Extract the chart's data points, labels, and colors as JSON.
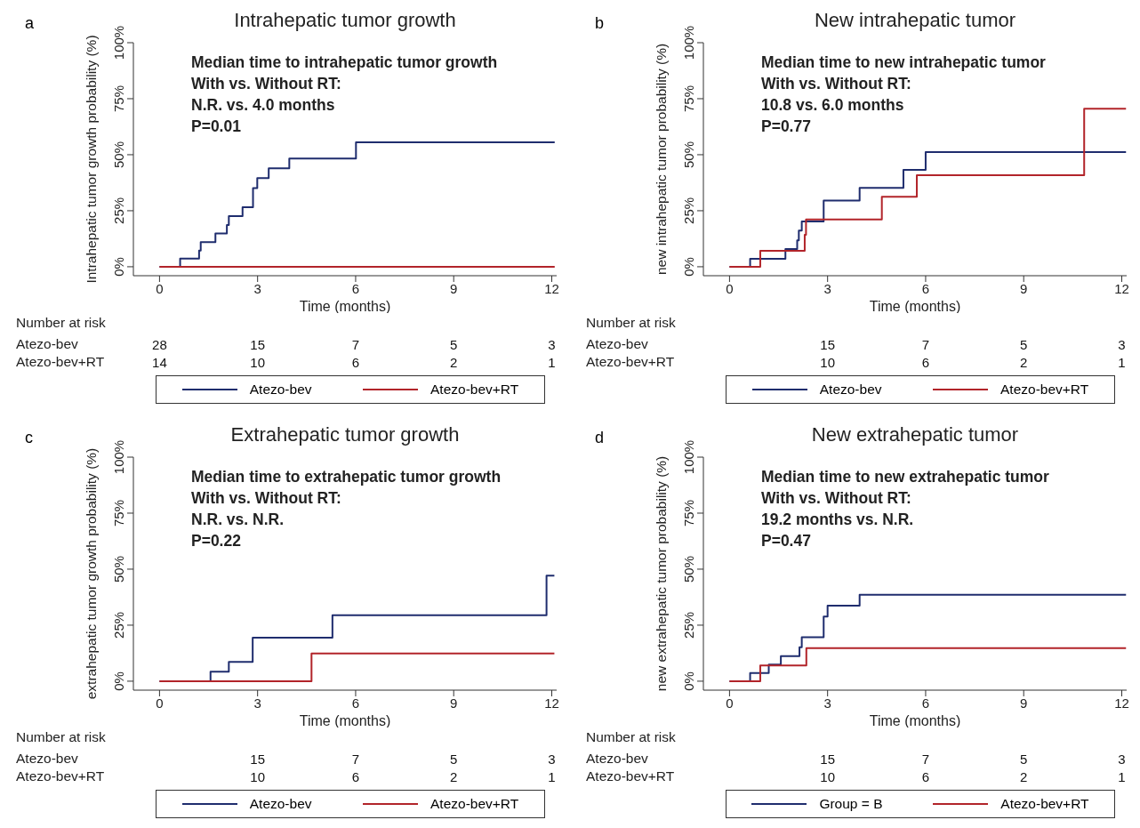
{
  "chart_data": [
    {
      "type": "step",
      "title": "Intrahepatic tumor growth",
      "xlabel": "Time (months)",
      "ylabel": "Intrahepatic tumor growth probability (%)",
      "xlim": [
        -0.8,
        12.15
      ],
      "xticks": [
        0,
        3,
        6,
        9,
        12
      ],
      "ylim": [
        -4,
        100
      ],
      "yticks": [
        {
          "value": 0,
          "label": "0%"
        },
        {
          "value": 25,
          "label": "25%"
        },
        {
          "value": 50,
          "label": "50%"
        },
        {
          "value": 75,
          "label": "75%"
        },
        {
          "value": 100,
          "label": "100%"
        }
      ],
      "legend": "bottom",
      "series": [
        {
          "name": "Atezo-bev",
          "color": "#1f2d6e",
          "x": [
            0,
            0.63,
            1.21,
            1.26,
            1.71,
            2.06,
            2.12,
            2.54,
            2.86,
            2.99,
            3.34,
            3.97,
            6.01,
            12.09
          ],
          "values": [
            0,
            3.6,
            7.2,
            11,
            14.9,
            18.6,
            22.6,
            26.6,
            35.1,
            39.6,
            43.9,
            48.3,
            55.5,
            55.5
          ]
        },
        {
          "name": "Atezo-bev+RT",
          "color": "#b2242a",
          "x": [
            0,
            12.09
          ],
          "values": [
            0,
            0
          ]
        }
      ],
      "annotations": [
        "a",
        "Median time to intrahepatic tumor growth",
        "With vs. Without RT:",
        "N.R. vs. 4.0 months",
        "P=0.01",
        "Number at risk",
        "Atezo-bev",
        "Atezo-bev+RT",
        "28",
        "15",
        "7",
        "5",
        "3",
        "14",
        "10",
        "6",
        "2",
        "1"
      ]
    },
    {
      "type": "step",
      "title": "New intrahepatic tumor",
      "xlabel": "Time (months)",
      "ylabel": "new intrahepatic tumor probability (%)",
      "xlim": [
        -0.8,
        12.15
      ],
      "xticks": [
        0,
        3,
        6,
        9,
        12
      ],
      "ylim": [
        -4,
        100
      ],
      "yticks": [
        {
          "value": 0,
          "label": "0%"
        },
        {
          "value": 25,
          "label": "25%"
        },
        {
          "value": 50,
          "label": "50%"
        },
        {
          "value": 75,
          "label": "75%"
        },
        {
          "value": 100,
          "label": "100%"
        }
      ],
      "legend": "bottom",
      "series": [
        {
          "name": "Atezo-bev",
          "color": "#1f2d6e",
          "x": [
            0,
            0.63,
            1.71,
            2.07,
            2.12,
            2.21,
            2.88,
            3.98,
            5.32,
            6.0,
            12.13
          ],
          "values": [
            0,
            3.5,
            7.9,
            11.8,
            16.1,
            20.2,
            29.5,
            35.2,
            43.2,
            51.2,
            51.2
          ]
        },
        {
          "name": "Atezo-bev+RT",
          "color": "#b2242a",
          "x": [
            0,
            0.94,
            2.3,
            2.34,
            4.66,
            5.73,
            10.85,
            12.13
          ],
          "values": [
            0,
            7.1,
            14.3,
            21.1,
            31.2,
            40.9,
            70.5,
            70.5
          ]
        }
      ],
      "annotations": [
        "b",
        "Median time to new intrahepatic tumor",
        "With vs. Without RT:",
        "10.8 vs. 6.0 months",
        "P=0.77",
        "Number at risk",
        "Atezo-bev",
        "Atezo-bev+RT",
        "15",
        "7",
        "5",
        "3",
        "10",
        "6",
        "2",
        "1"
      ]
    },
    {
      "type": "step",
      "title": "Extrahepatic tumor growth",
      "xlabel": "Time (months)",
      "ylabel": "extrahepatic tumor growth probability (%)",
      "xlim": [
        -0.8,
        12.15
      ],
      "xticks": [
        0,
        3,
        6,
        9,
        12
      ],
      "ylim": [
        -4,
        100
      ],
      "yticks": [
        {
          "value": 0,
          "label": "0%"
        },
        {
          "value": 25,
          "label": "25%"
        },
        {
          "value": 50,
          "label": "50%"
        },
        {
          "value": 75,
          "label": "75%"
        },
        {
          "value": 100,
          "label": "100%"
        }
      ],
      "legend": "bottom",
      "series": [
        {
          "name": "Atezo-bev",
          "color": "#1f2d6e",
          "x": [
            0,
            1.56,
            2.12,
            2.85,
            5.29,
            11.84,
            12.08
          ],
          "values": [
            0,
            4.2,
            8.6,
            19.4,
            29.4,
            47.1,
            47.1
          ]
        },
        {
          "name": "Atezo-bev+RT",
          "color": "#b2242a",
          "x": [
            0,
            4.65,
            12.08
          ],
          "values": [
            0,
            12.4,
            12.4
          ]
        }
      ],
      "annotations": [
        "c",
        "Median time to extrahepatic tumor growth",
        "With vs. Without RT:",
        "N.R. vs.  N.R.",
        "P=0.22",
        "Number at risk",
        "Atezo-bev",
        "Atezo-bev+RT",
        "15",
        "7",
        "5",
        "3",
        "10",
        "6",
        "2",
        "1"
      ]
    },
    {
      "type": "step",
      "title": "New extrahepatic tumor",
      "xlabel": "Time (months)",
      "ylabel": "new extrahepatic tumor probability (%)",
      "xlim": [
        -0.8,
        12.15
      ],
      "xticks": [
        0,
        3,
        6,
        9,
        12
      ],
      "ylim": [
        -4,
        100
      ],
      "yticks": [
        {
          "value": 0,
          "label": "0%"
        },
        {
          "value": 25,
          "label": "25%"
        },
        {
          "value": 50,
          "label": "50%"
        },
        {
          "value": 75,
          "label": "75%"
        },
        {
          "value": 100,
          "label": "100%"
        }
      ],
      "legend": "bottom",
      "series": [
        {
          "name": "Group = B",
          "color": "#1f2d6e",
          "x": [
            0,
            0.63,
            1.2,
            1.57,
            2.14,
            2.21,
            2.88,
            3.0,
            3.98,
            12.13
          ],
          "values": [
            0,
            3.6,
            7.4,
            11.2,
            15.2,
            19.6,
            28.8,
            33.7,
            38.6,
            38.6
          ]
        },
        {
          "name": "Atezo-bev+RT",
          "color": "#b2242a",
          "x": [
            0,
            0.94,
            2.35,
            12.13
          ],
          "values": [
            0,
            7.0,
            14.8,
            14.8
          ]
        }
      ],
      "annotations": [
        "d",
        "Median time to new extrahepatic tumor",
        "With vs. Without RT:",
        "19.2 months vs.  N.R.",
        "P=0.47",
        "Number at risk",
        "Atezo-bev",
        "Atezo-bev+RT",
        "15",
        "7",
        "5",
        "3",
        "10",
        "6",
        "2",
        "1"
      ]
    }
  ]
}
